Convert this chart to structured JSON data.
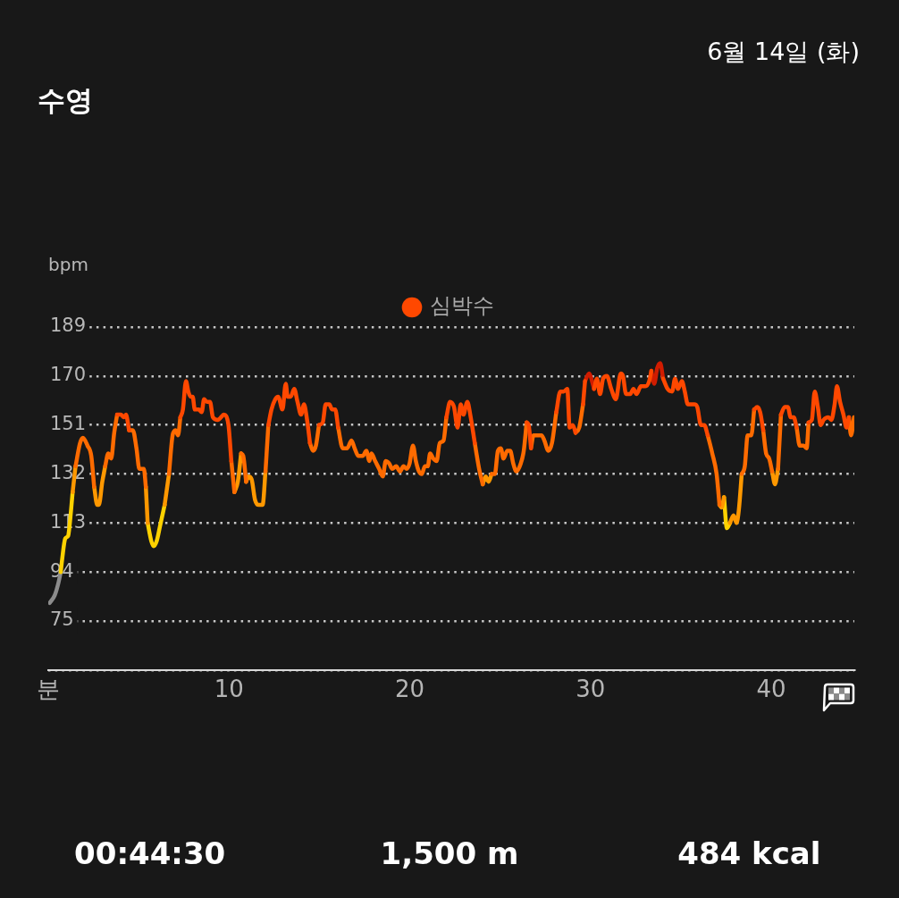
{
  "chart_data": {
    "type": "line",
    "title": "수영",
    "subtitle": "6월 14일 (화)",
    "ylabel": "bpm",
    "annotations": [
      "00:44:30",
      "1,500 m",
      "484 kcal"
    ],
    "series": [
      {
        "name": "심박수",
        "color": "#ff4800",
        "x": [
          3.81,
          4.02,
          4.17,
          4.3,
          4.47,
          4.68,
          7.31,
          7.45,
          7.62,
          7.75,
          7.87,
          7.99,
          8.11,
          8.33,
          8.49,
          8.62,
          8.78,
          8.95,
          9.11,
          9.39,
          9.56,
          9.72,
          9.97,
          10.13,
          10.3,
          12.18,
          12.35,
          12.56,
          12.72,
          12.96,
          13.14,
          13.25,
          13.41,
          13.61,
          13.79,
          13.99,
          14.15,
          14.32,
          14.48,
          14.65,
          14.98,
          15.19,
          15.35,
          15.55,
          15.71,
          15.88,
          16.04,
          16.29,
          22.03,
          22.23,
          22.45,
          22.65,
          22.82,
          22.97,
          23.19,
          23.35,
          23.6,
          23.84,
          26.47,
          26.58,
          26.71,
          26.85,
          28.11,
          28.33,
          28.52,
          28.72,
          28.85,
          29.02,
          29.18,
          29.38,
          29.59,
          29.7,
          29.92,
          30.2,
          30.36,
          30.53,
          30.7,
          30.91,
          31.15,
          31.4,
          31.68,
          31.8,
          31.97,
          32.2,
          32.38,
          32.55,
          32.79,
          33.04,
          33.25,
          33.37,
          33.53,
          34.02,
          34.27,
          34.52,
          34.68,
          34.84,
          35.06,
          35.22,
          35.39,
          35.75,
          35.91,
          36.11,
          36.3,
          36.49,
          36.74,
          39.06,
          39.23,
          39.39,
          39.56,
          39.72,
          40.54,
          40.75,
          40.92,
          41.08,
          41.25,
          41.41,
          41.58,
          42.07,
          42.25,
          42.41,
          42.58,
          42.74,
          42.9,
          43.16,
          43.33,
          43.51,
          43.64,
          43.81,
          44.0,
          44.17,
          44.3
        ],
        "values": [
          155,
          155,
          154,
          155,
          149,
          null,
          154,
          157,
          168,
          164,
          162,
          162,
          157,
          157,
          156,
          161,
          160,
          160,
          154,
          153,
          154,
          155,
          151,
          137,
          null,
          151,
          157,
          161,
          162,
          157,
          167,
          162,
          162,
          165,
          160,
          155,
          159,
          153,
          144,
          null,
          151,
          152,
          159,
          159,
          157,
          157,
          150,
          null,
          154,
          160,
          158,
          150,
          159,
          155,
          160,
          155,
          144,
          null,
          152,
          151,
          142,
          null,
          156,
          164,
          164,
          165,
          150,
          151,
          148,
          null,
          159,
          168,
          null,
          165,
          169,
          163,
          169,
          170,
          165,
          161,
          171,
          170,
          163,
          163,
          165,
          163,
          166,
          166,
          168,
          172,
          null,
          169,
          165,
          164,
          169,
          165,
          168,
          164,
          159,
          159,
          158,
          151,
          151,
          147,
          null,
          157,
          158,
          156,
          149,
          null,
          155,
          158,
          158,
          154,
          154,
          150,
          null,
          152,
          153,
          164,
          158,
          151,
          153,
          154,
          153,
          159,
          166,
          160,
          155,
          150,
          154
        ]
      },
      {
        "color": "#ff6b00",
        "x": [
          1.51,
          1.76,
          1.92,
          2.17,
          2.38,
          2.54,
          2.71,
          3.15,
          3.32,
          3.48,
          3.65,
          3.81,
          4.02,
          4.47,
          4.68,
          4.88,
          5.04,
          5.29,
          5.4,
          5.5,
          6.68,
          6.88,
          7.04,
          7.18,
          7.31,
          7.45,
          10.13,
          10.3,
          10.49,
          10.67,
          10.79,
          10.95,
          11.08,
          12.02,
          12.18,
          12.35,
          14.48,
          14.65,
          14.81,
          14.98,
          15.19,
          16.04,
          16.29,
          16.54,
          16.78,
          16.95,
          17.16,
          17.4,
          17.6,
          17.77,
          17.88,
          18.09,
          18.31,
          18.51,
          18.67,
          18.87,
          19.03,
          19.25,
          19.46,
          19.66,
          19.82,
          19.99,
          20.18,
          20.34,
          20.51,
          20.67,
          20.84,
          21.0,
          21.13,
          21.3,
          21.49,
          21.66,
          21.87,
          22.03,
          22.23,
          23.6,
          23.84,
          24.04,
          24.2,
          24.53,
          24.71,
          24.88,
          25.04,
          25.19,
          25.4,
          25.56,
          25.73,
          25.9,
          26.14,
          26.31,
          26.47,
          26.58,
          26.71,
          26.85,
          27.08,
          27.29,
          27.45,
          27.67,
          27.87,
          28.11,
          28.33,
          29.18,
          29.38,
          29.59,
          29.7,
          36.49,
          36.74,
          36.98,
          37.14,
          37.26,
          38.37,
          38.54,
          38.7,
          38.9,
          39.06,
          39.23,
          39.56,
          39.72,
          39.89,
          40.05,
          40.21,
          40.38,
          40.54,
          40.75,
          41.41,
          41.58,
          41.79,
          41.96,
          42.07,
          42.25,
          44.3,
          44.42,
          44.58
        ],
        "values": [
          135,
          144,
          146,
          143,
          139,
          127,
          null,
          135,
          140,
          138,
          148,
          155,
          null,
          149,
          149,
          142,
          134,
          134,
          127,
          null,
          132,
          147,
          149,
          147,
          154,
          null,
          137,
          125,
          null,
          140,
          139,
          129,
          null,
          133,
          151,
          null,
          144,
          141,
          143,
          151,
          null,
          150,
          142,
          142,
          145,
          142,
          139,
          139,
          141,
          137,
          140,
          137,
          134,
          131,
          137,
          136,
          134,
          135,
          133,
          135,
          134,
          136,
          143,
          137,
          133,
          132,
          135,
          135,
          140,
          138,
          137,
          144,
          145,
          154,
          null,
          144,
          134,
          128,
          null,
          132,
          132,
          141,
          142,
          138,
          141,
          141,
          136,
          133,
          136,
          141,
          152,
          null,
          142,
          147,
          147,
          147,
          145,
          141,
          144,
          156,
          null,
          148,
          150,
          159,
          null,
          147,
          140,
          132,
          120,
          null,
          132,
          135,
          147,
          147,
          157,
          null,
          149,
          140,
          138,
          133,
          null,
          134,
          155,
          null,
          150,
          143,
          143,
          142,
          152,
          null,
          154,
          147,
          154
        ]
      },
      {
        "color": "#ff9800",
        "x": [
          1.35,
          1.51,
          1.76,
          2.54,
          2.71,
          2.8,
          2.99,
          3.15,
          3.32,
          5.4,
          5.5,
          5.7,
          6.44,
          6.68,
          6.88,
          10.3,
          10.49,
          10.67,
          10.79,
          10.95,
          11.08,
          11.25,
          11.44,
          11.64,
          11.86,
          12.02,
          12.18,
          24.04,
          24.2,
          24.37,
          24.53,
          24.71,
          37.14,
          37.26,
          37.39,
          37.55,
          37.72,
          37.92,
          38.08,
          38.21,
          38.37,
          38.54,
          40.05,
          40.21,
          40.38
        ],
        "values": [
          125,
          135,
          null,
          127,
          120,
          120,
          129,
          135,
          null,
          127,
          113,
          null,
          120,
          132,
          null,
          125,
          129,
          140,
          null,
          129,
          131,
          130,
          122,
          120,
          120,
          133,
          null,
          128,
          131,
          129,
          132,
          null,
          120,
          119,
          123,
          null,
          113,
          116,
          113,
          118,
          132,
          null,
          133,
          128,
          134
        ]
      },
      {
        "color": "#ffd200",
        "x": [
          0.69,
          0.77,
          0.94,
          1.1,
          1.18,
          1.35,
          1.51,
          5.5,
          5.7,
          5.83,
          6.0,
          6.19,
          6.44,
          6.68,
          37.39,
          37.55,
          37.72
        ],
        "values": [
          94,
          99,
          107,
          108,
          112,
          125,
          null,
          113,
          106,
          104,
          106,
          112,
          120,
          null,
          123,
          111,
          113
        ]
      },
      {
        "color": "#8c8c8c",
        "x": [
          0.08,
          0.36,
          0.57,
          0.69
        ],
        "values": [
          82,
          85,
          90,
          94
        ]
      },
      {
        "color": "#d01c00",
        "x": [
          29.7,
          29.92,
          30.2,
          30.36,
          33.37,
          33.53,
          33.69,
          33.86,
          34.02
        ],
        "values": [
          168,
          171,
          165,
          null,
          172,
          167,
          173,
          175,
          169
        ]
      }
    ],
    "xlim": [
      0,
      44.6
    ],
    "xticks": [
      {
        "value": 0,
        "label": "분"
      },
      10,
      20,
      30,
      40
    ],
    "ylim": [
      56,
      189
    ],
    "yticks": [
      {
        "value": 56,
        "label": null
      },
      75,
      94,
      113,
      132,
      151,
      170,
      189
    ],
    "grid": "y",
    "legend": "top",
    "marker": "none"
  }
}
